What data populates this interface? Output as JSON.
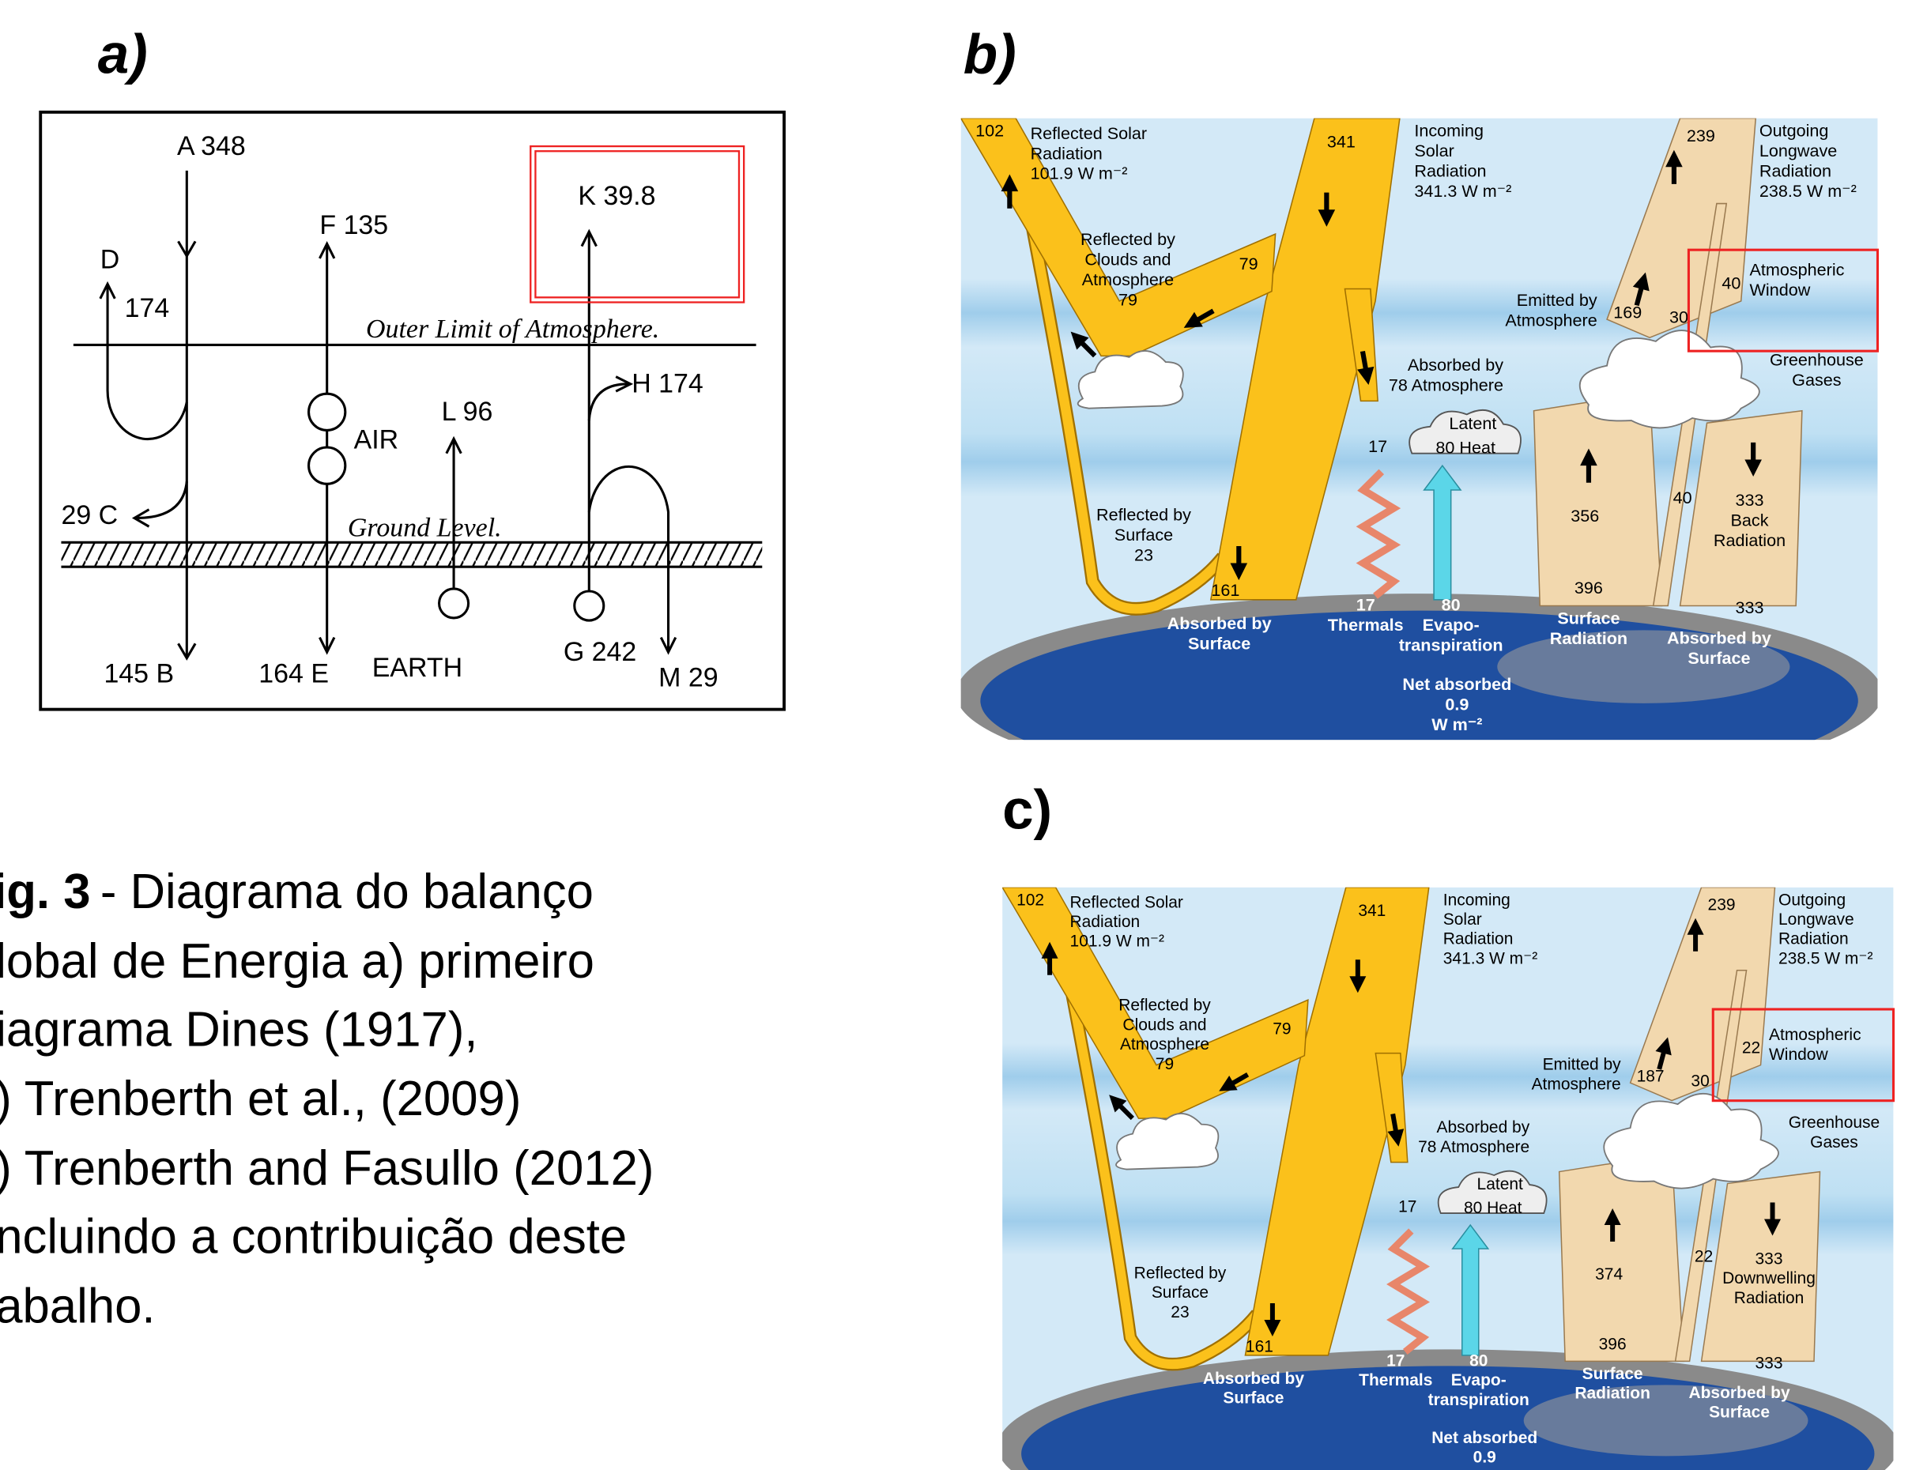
{
  "panel_labels": [
    "a)",
    "b)",
    "c)"
  ],
  "caption": {
    "label": "ig. 3",
    "lines": [
      "- Diagrama do balanço",
      "lobal de Energia a) primeiro",
      "iagrama Dines (1917),",
      ") Trenberth et al., (2009)",
      ") Trenberth and Fasullo (2012)",
      "ncluindo a contribuição deste",
      "abalho."
    ]
  },
  "panel_a": {
    "labels": [
      "A 348",
      "D",
      "174",
      "F 135",
      "K 39.8",
      "Outer Limit of Atmosphere.",
      "L 96",
      "AIR",
      "H 174",
      "29 C",
      "Ground Level.",
      "145 B",
      "164 E",
      "EARTH",
      "G 242",
      "M 29"
    ]
  },
  "panel_b": {
    "labels": [
      {
        "lines": [
          "102"
        ]
      },
      {
        "lines": [
          "Reflected Solar",
          "Radiation",
          "101.9 W m⁻²"
        ]
      },
      {
        "lines": [
          "341"
        ]
      },
      {
        "lines": [
          "Incoming",
          "Solar",
          "Radiation",
          "341.3 W m⁻²"
        ]
      },
      {
        "lines": [
          "239"
        ]
      },
      {
        "lines": [
          "Outgoing",
          "Longwave",
          "Radiation",
          "238.5 W m⁻²"
        ]
      },
      {
        "lines": [
          "Reflected by",
          "Clouds and",
          "Atmosphere",
          "79"
        ]
      },
      {
        "lines": [
          "79"
        ]
      },
      {
        "lines": [
          "Emitted by",
          "Atmosphere"
        ]
      },
      {
        "lines": [
          "169"
        ]
      },
      {
        "lines": [
          "30"
        ]
      },
      {
        "lines": [
          "40"
        ]
      },
      {
        "lines": [
          "Atmospheric",
          "Window"
        ]
      },
      {
        "lines": [
          "Greenhouse",
          "Gases"
        ]
      },
      {
        "lines": [
          "Absorbed by",
          "78 Atmosphere"
        ]
      },
      {
        "lines": [
          "17"
        ]
      },
      {
        "lines": [
          "Latent"
        ]
      },
      {
        "lines": [
          "80  Heat"
        ]
      },
      {
        "lines": [
          "356"
        ]
      },
      {
        "lines": [
          "40"
        ]
      },
      {
        "lines": [
          "333",
          "Back",
          "Radiation"
        ]
      },
      {
        "lines": [
          "Reflected by",
          "Surface",
          "23"
        ]
      },
      {
        "lines": [
          "161"
        ]
      },
      {
        "lines": [
          "396"
        ]
      },
      {
        "lines": [
          "333"
        ]
      },
      {
        "lines": [
          "17",
          "Thermals"
        ]
      },
      {
        "lines": [
          "80",
          "Evapo-",
          "transpiration"
        ]
      },
      {
        "lines": [
          "Absorbed by",
          "Surface"
        ]
      },
      {
        "lines": [
          "Surface",
          "Radiation"
        ]
      },
      {
        "lines": [
          "Absorbed by",
          "Surface"
        ]
      },
      {
        "lines": [
          "Net absorbed",
          "0.9",
          "W m⁻²"
        ]
      }
    ]
  },
  "panel_c": {
    "labels": [
      {
        "lines": [
          "102"
        ]
      },
      {
        "lines": [
          "Reflected Solar",
          "Radiation",
          "101.9 W m⁻²"
        ]
      },
      {
        "lines": [
          "341"
        ]
      },
      {
        "lines": [
          "Incoming",
          "Solar",
          "Radiation",
          "341.3 W m⁻²"
        ]
      },
      {
        "lines": [
          "239"
        ]
      },
      {
        "lines": [
          "Outgoing",
          "Longwave",
          "Radiation",
          "238.5 W m⁻²"
        ]
      },
      {
        "lines": [
          "Reflected by",
          "Clouds and",
          "Atmosphere",
          "79"
        ]
      },
      {
        "lines": [
          "79"
        ]
      },
      {
        "lines": [
          "Emitted by",
          "Atmosphere"
        ]
      },
      {
        "lines": [
          "187"
        ]
      },
      {
        "lines": [
          "30"
        ]
      },
      {
        "lines": [
          "22"
        ]
      },
      {
        "lines": [
          "Atmospheric",
          "Window"
        ]
      },
      {
        "lines": [
          "Greenhouse",
          "Gases"
        ]
      },
      {
        "lines": [
          "Absorbed by",
          "78 Atmosphere"
        ]
      },
      {
        "lines": [
          "17"
        ]
      },
      {
        "lines": [
          "Latent"
        ]
      },
      {
        "lines": [
          "80  Heat"
        ]
      },
      {
        "lines": [
          "374"
        ]
      },
      {
        "lines": [
          "22"
        ]
      },
      {
        "lines": [
          "333",
          "Downwelling",
          "Radiation"
        ]
      },
      {
        "lines": [
          "Reflected by",
          "Surface",
          "23"
        ]
      },
      {
        "lines": [
          "161"
        ]
      },
      {
        "lines": [
          "396"
        ]
      },
      {
        "lines": [
          "333"
        ]
      },
      {
        "lines": [
          "17",
          "Thermals"
        ]
      },
      {
        "lines": [
          "80",
          "Evapo-",
          "transpiration"
        ]
      },
      {
        "lines": [
          "Absorbed by",
          "Surface"
        ]
      },
      {
        "lines": [
          "Surface",
          "Radiation"
        ]
      },
      {
        "lines": [
          "Absorbed by",
          "Surface"
        ]
      },
      {
        "lines": [
          "Net absorbed",
          "0.9"
        ]
      }
    ]
  }
}
